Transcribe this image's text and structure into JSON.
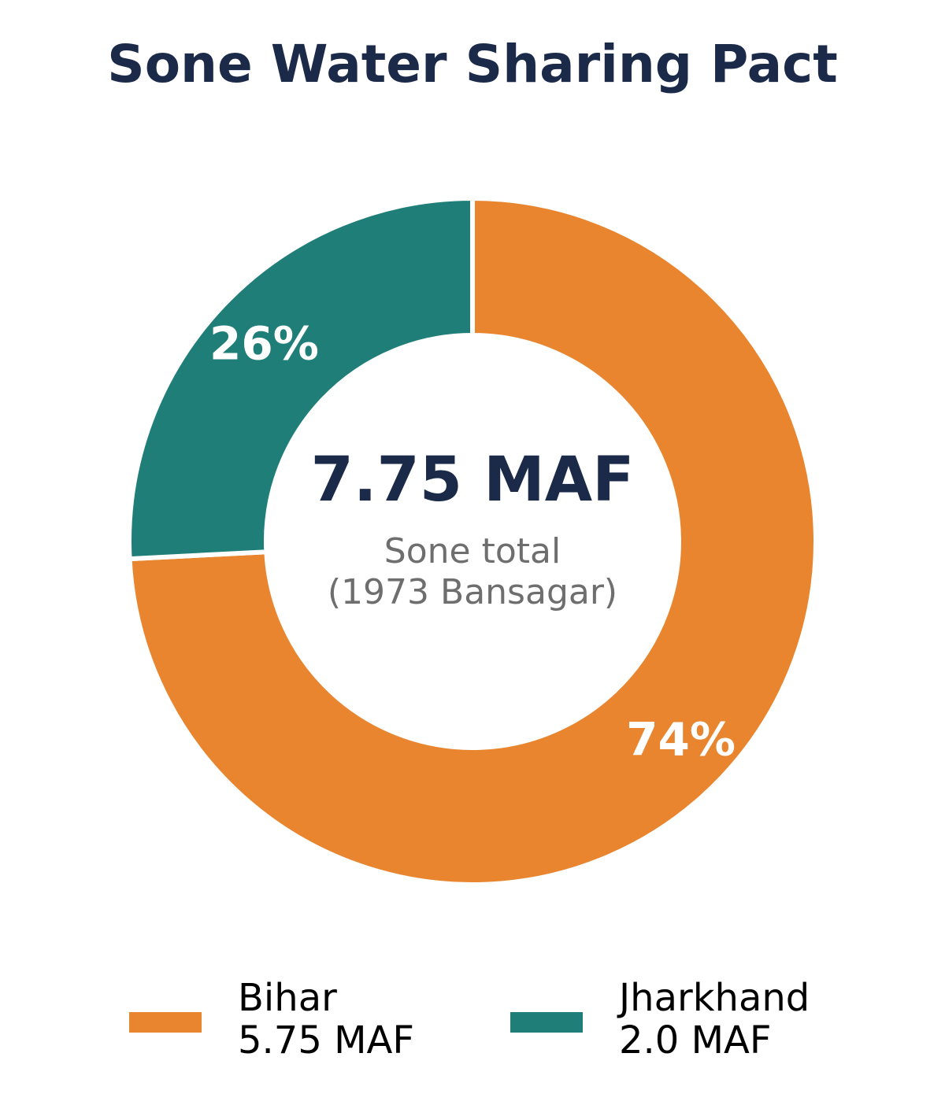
{
  "chart_data": {
    "type": "pie",
    "title": "Sone Water Sharing Pact",
    "total": {
      "value": "7.75 MAF",
      "label_line1": "Sone total",
      "label_line2": "(1973 Bansagar)"
    },
    "slices": [
      {
        "name": "Bihar",
        "value": 5.75,
        "value_label": "5.75 MAF",
        "percent_label": "74%",
        "color": "#E8852E"
      },
      {
        "name": "Jharkhand",
        "value": 2.0,
        "value_label": "2.0 MAF",
        "percent_label": "26%",
        "color": "#1F7F78"
      }
    ],
    "legend_position": "bottom",
    "start_angle": "12 o'clock",
    "direction": "clockwise"
  },
  "colors": {
    "title": "#1C2A4A",
    "center_value": "#1C2A4A",
    "center_sub": "#6E6E6E",
    "slice_label": "#FFFFFF",
    "legend_text": "#000000",
    "separator": "#FFFFFF"
  }
}
